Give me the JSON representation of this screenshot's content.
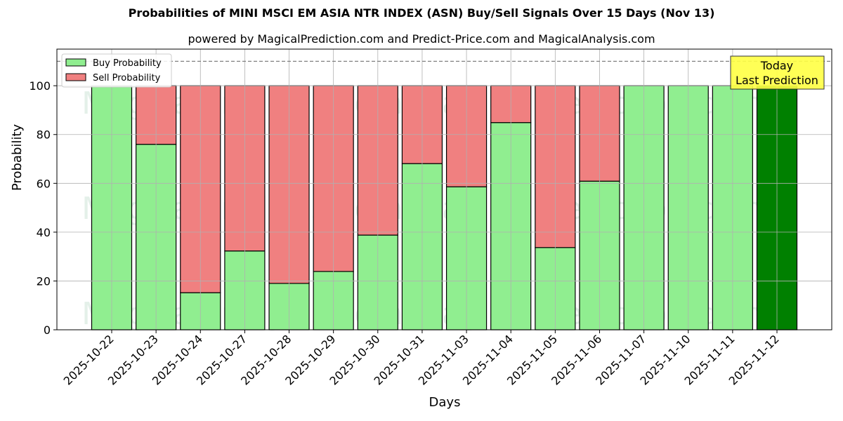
{
  "header": {
    "title": "Probabilities of MINI MSCI EM ASIA NTR INDEX (ASN) Buy/Sell Signals Over 15 Days (Nov 13)",
    "subtitle": "powered by MagicalPrediction.com and Predict-Price.com and MagicalAnalysis.com"
  },
  "legend": {
    "items": [
      {
        "label": "Buy Probability",
        "color": "#90ee90"
      },
      {
        "label": "Sell Probability",
        "color": "#f08080"
      }
    ]
  },
  "annotation": {
    "line1": "Today",
    "line2": "Last Prediction",
    "bg": "#ffff44"
  },
  "watermarks": [
    "MagicalAnalysis.com",
    "MagicalPrediction.com"
  ],
  "colors": {
    "buy": "#90ee90",
    "sell": "#f08080",
    "today": "#008000",
    "grid": "#b0b0b0",
    "dashed": "#808080"
  },
  "chart_data": {
    "type": "bar",
    "stacked": true,
    "title": "Probabilities of MINI MSCI EM ASIA NTR INDEX (ASN) Buy/Sell Signals Over 15 Days (Nov 13)",
    "subtitle": "powered by MagicalPrediction.com and Predict-Price.com and MagicalAnalysis.com",
    "xlabel": "Days",
    "ylabel": "Probability",
    "ylim": [
      0,
      115
    ],
    "yticks": [
      0,
      20,
      40,
      60,
      80,
      100
    ],
    "grid": true,
    "legend_position": "upper left",
    "reference_line": {
      "y": 110,
      "style": "dashed"
    },
    "categories": [
      "2025-10-22",
      "2025-10-23",
      "2025-10-24",
      "2025-10-27",
      "2025-10-28",
      "2025-10-29",
      "2025-10-30",
      "2025-10-31",
      "2025-11-03",
      "2025-11-04",
      "2025-11-05",
      "2025-11-06",
      "2025-11-07",
      "2025-11-10",
      "2025-11-11",
      "2025-11-12"
    ],
    "series": [
      {
        "name": "Buy Probability",
        "values": [
          100,
          76.0,
          15.2,
          32.3,
          19.0,
          23.9,
          38.8,
          68.1,
          58.6,
          84.9,
          33.7,
          60.9,
          100,
          100,
          100,
          100
        ]
      },
      {
        "name": "Sell Probability",
        "values": [
          0,
          24.0,
          84.8,
          67.7,
          81.0,
          76.1,
          61.2,
          31.9,
          41.4,
          15.1,
          66.3,
          39.1,
          0,
          0,
          0,
          0
        ]
      }
    ],
    "highlight": {
      "category": "2025-11-12",
      "label": "Today / Last Prediction",
      "color": "#008000"
    }
  }
}
